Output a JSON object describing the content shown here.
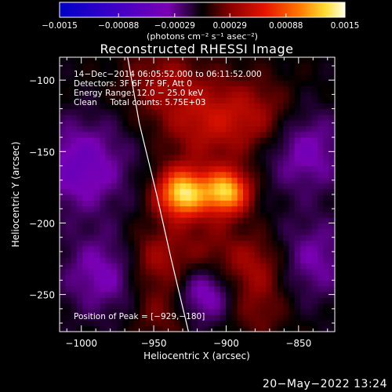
{
  "chart_data": {
    "type": "heatmap",
    "title": "Reconstructed RHESSI Image",
    "xlabel": "Heliocentric X (arcsec)",
    "ylabel": "Heliocentric Y (arcsec)",
    "xlim": [
      -1015,
      -825
    ],
    "ylim": [
      -276,
      -84
    ],
    "x_ticks": [
      -1000,
      -950,
      -900,
      -850
    ],
    "x_tick_labels": [
      "−1000",
      "−950",
      "−900",
      "−850"
    ],
    "y_ticks": [
      -100,
      -150,
      -200,
      -250
    ],
    "y_tick_labels": [
      "−100",
      "−150",
      "−200",
      "−250"
    ],
    "colorbar": {
      "min": -0.0015,
      "max": 0.0015,
      "tick_values": [
        -0.0015,
        -0.00088,
        -0.00029,
        0.00029,
        0.00088,
        0.0015
      ],
      "tick_labels": [
        "−0.0015",
        "−0.00088",
        "−0.00029",
        "0.00029",
        "0.00088",
        "0.0015"
      ],
      "unit_label": "(photons cm⁻² s⁻¹ asec⁻²)"
    },
    "annotations": [
      "14−Dec−2014 06:05:52.000 to 06:11:52.000",
      "Detectors: 3F 6F 7F 9F, Att 0",
      "Energy Range: 12.0 − 25.0 keV",
      "Clean     Total counts: 5.75E+03"
    ],
    "peak_label": "Position of Peak = [−929,−180]",
    "peak_position": [
      -929,
      -180
    ],
    "sources": [
      {
        "x": -930,
        "y": -179,
        "amplitude": 0.00135,
        "sigma": 12
      },
      {
        "x": -900,
        "y": -178,
        "amplitude": 0.00125,
        "sigma": 11
      },
      {
        "x": -915,
        "y": -128,
        "amplitude": 0.00045,
        "sigma": 20
      },
      {
        "x": -880,
        "y": -125,
        "amplitude": 0.00035,
        "sigma": 18
      },
      {
        "x": -945,
        "y": -100,
        "amplitude": 0.0003,
        "sigma": 18
      },
      {
        "x": -948,
        "y": -225,
        "amplitude": 0.0004,
        "sigma": 16
      },
      {
        "x": -880,
        "y": -230,
        "amplitude": 0.0004,
        "sigma": 16
      },
      {
        "x": -945,
        "y": -262,
        "amplitude": 0.00025,
        "sigma": 14
      },
      {
        "x": -878,
        "y": -262,
        "amplitude": 0.00022,
        "sigma": 14
      },
      {
        "x": -912,
        "y": -215,
        "amplitude": 0.0002,
        "sigma": 14
      },
      {
        "x": -1000,
        "y": -160,
        "amplitude": -0.0005,
        "sigma": 22
      },
      {
        "x": -985,
        "y": -235,
        "amplitude": -0.0004,
        "sigma": 20
      },
      {
        "x": -845,
        "y": -150,
        "amplitude": -0.0004,
        "sigma": 20
      },
      {
        "x": -840,
        "y": -225,
        "amplitude": -0.00035,
        "sigma": 20
      },
      {
        "x": -915,
        "y": -250,
        "amplitude": -0.00045,
        "sigma": 14
      }
    ],
    "limb_curve": [
      [
        -968,
        -84
      ],
      [
        -960,
        -130
      ],
      [
        -948,
        -180
      ],
      [
        -938,
        -225
      ],
      [
        -926,
        -276
      ]
    ],
    "grid": false
  },
  "footer_timestamp": "20−May−2022 13:24"
}
